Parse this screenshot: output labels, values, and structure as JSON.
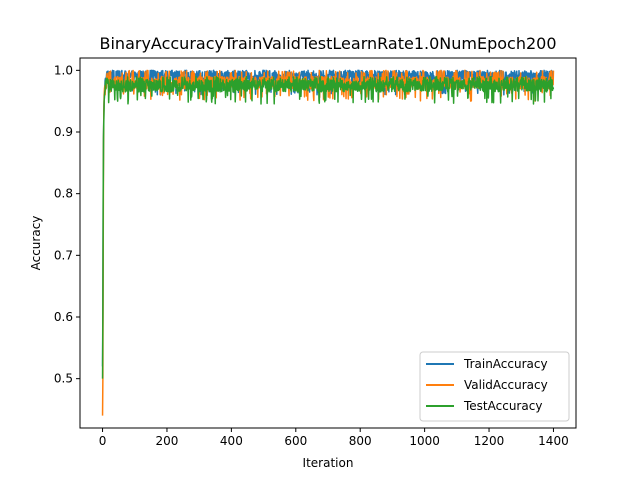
{
  "chart_data": {
    "type": "line",
    "title": "BinaryAccuracyTrainValidTestLearnRate1.0NumEpoch200",
    "xlabel": "Iteration",
    "ylabel": "Accuracy",
    "xlim": [
      -70,
      1470
    ],
    "ylim": [
      0.42,
      1.02
    ],
    "xticks": [
      0,
      200,
      400,
      600,
      800,
      1000,
      1200,
      1400
    ],
    "yticks": [
      0.5,
      0.6,
      0.7,
      0.8,
      0.9,
      1.0
    ],
    "ytick_labels": [
      "0.5",
      "0.6",
      "0.7",
      "0.8",
      "0.9",
      "1.0"
    ],
    "legend_position": "lower-right",
    "grid": false,
    "n_points": 1401,
    "series": [
      {
        "name": "TrainAccuracy",
        "color": "#1f77b4",
        "start_values": [
          0.52,
          0.62,
          0.78,
          0.89,
          0.93,
          0.95,
          0.96,
          0.97
        ],
        "plateau": 0.99,
        "band": [
          0.96,
          1.0
        ]
      },
      {
        "name": "ValidAccuracy",
        "color": "#ff7f0e",
        "start_values": [
          0.44,
          0.5,
          0.7,
          0.88,
          0.93,
          0.96,
          0.97,
          0.975
        ],
        "plateau": 0.98,
        "band": [
          0.95,
          1.0
        ]
      },
      {
        "name": "TestAccuracy",
        "color": "#2ca02c",
        "start_values": [
          0.5,
          0.6,
          0.8,
          0.89,
          0.92,
          0.95,
          0.96,
          0.965
        ],
        "plateau": 0.975,
        "band": [
          0.945,
          0.99
        ]
      }
    ]
  }
}
